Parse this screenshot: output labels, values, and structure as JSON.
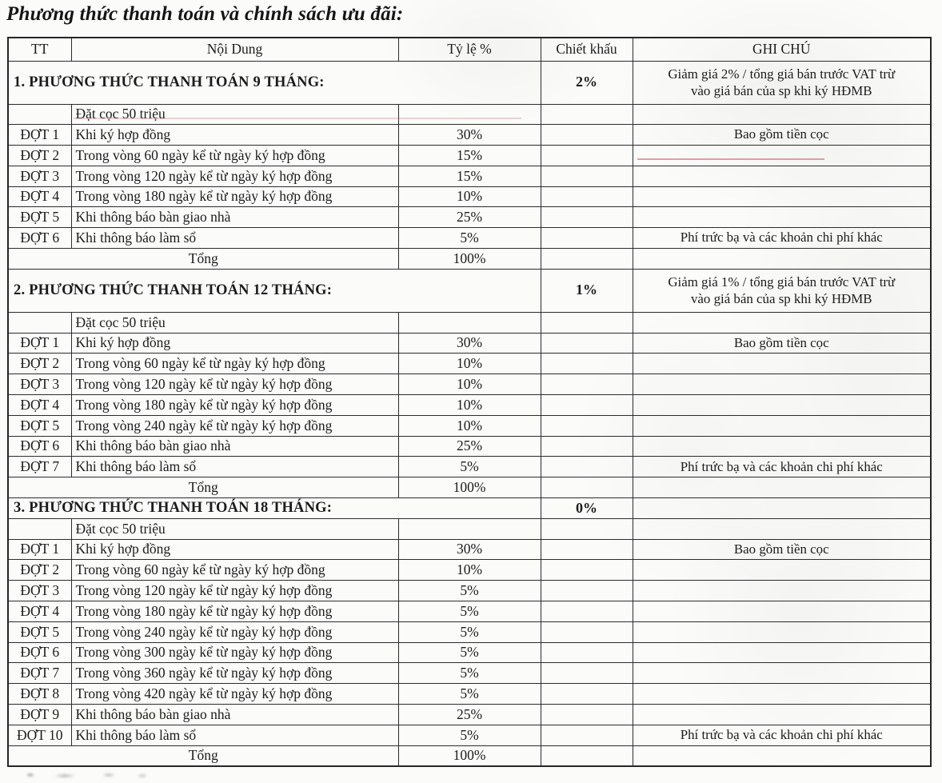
{
  "title": "Phương thức thanh toán và chính sách ưu đãi:",
  "colors": {
    "paper": "#fbfbf9",
    "ink": "#1c1c1c",
    "border": "#2c2c2c",
    "artifact_red": "#c9565c"
  },
  "table": {
    "headers": [
      "TT",
      "Nội Dung",
      "Tỷ lệ %",
      "Chiết khấu",
      "GHI CHÚ"
    ],
    "sections": [
      {
        "heading": "1. PHƯƠNG THỨC THANH TOÁN 9 THÁNG:",
        "discount": "2%",
        "heading_note": "Giảm giá 2% / tổng giá bán trước VAT trừ vào giá bán của sp khi ký HĐMB",
        "tall_heading": true,
        "rows": [
          {
            "tt": "",
            "content": "Đặt cọc 50 triệu",
            "rate": "",
            "note": ""
          },
          {
            "tt": "ĐỢT 1",
            "content": "Khi ký hợp đồng",
            "rate": "30%",
            "note": "Bao gồm tiền cọc"
          },
          {
            "tt": "ĐỢT 2",
            "content": "Trong vòng 60 ngày kể từ ngày ký hợp đồng",
            "rate": "15%",
            "note": ""
          },
          {
            "tt": "ĐỢT 3",
            "content": "Trong vòng 120 ngày kể từ ngày ký hợp đồng",
            "rate": "15%",
            "note": ""
          },
          {
            "tt": "ĐỢT 4",
            "content": "Trong vòng 180 ngày kể từ ngày ký hợp đồng",
            "rate": "10%",
            "note": ""
          },
          {
            "tt": "ĐỢT 5",
            "content": "Khi thông báo bàn giao nhà",
            "rate": "25%",
            "note": ""
          },
          {
            "tt": "ĐỢT 6",
            "content": "Khi thông báo làm sổ",
            "rate": "5%",
            "note": "Phí trức bạ và các khoản chi phí khác"
          }
        ],
        "total_label": "Tổng",
        "total_rate": "100%"
      },
      {
        "heading": "2. PHƯƠNG THỨC THANH TOÁN 12 THÁNG:",
        "discount": "1%",
        "heading_note": "Giảm giá 1% / tổng giá bán trước VAT trừ vào giá bán của sp khi ký HĐMB",
        "tall_heading": true,
        "rows": [
          {
            "tt": "",
            "content": "Đặt cọc 50 triệu",
            "rate": "",
            "note": ""
          },
          {
            "tt": "ĐỢT 1",
            "content": "Khi ký hợp đồng",
            "rate": "30%",
            "note": "Bao gồm tiền cọc"
          },
          {
            "tt": "ĐỢT 2",
            "content": "Trong vòng 60 ngày kể từ ngày ký hợp đồng",
            "rate": "10%",
            "note": ""
          },
          {
            "tt": "ĐỢT 3",
            "content": "Trong vòng 120 ngày kể từ ngày ký hợp đồng",
            "rate": "10%",
            "note": ""
          },
          {
            "tt": "ĐỢT 4",
            "content": "Trong vòng 180 ngày kể từ ngày ký hợp đồng",
            "rate": "10%",
            "note": ""
          },
          {
            "tt": "ĐỢT 5",
            "content": "Trong vòng 240 ngày kể từ ngày ký hợp đồng",
            "rate": "10%",
            "note": ""
          },
          {
            "tt": "ĐỢT 6",
            "content": "Khi thông báo bàn giao nhà",
            "rate": "25%",
            "note": ""
          },
          {
            "tt": "ĐỢT 7",
            "content": "Khi thông báo làm sổ",
            "rate": "5%",
            "note": "Phí trức bạ và các khoản chi phí khác"
          }
        ],
        "total_label": "Tổng",
        "total_rate": "100%"
      },
      {
        "heading": "3. PHƯƠNG THỨC THANH TOÁN 18 THÁNG:",
        "discount": "0%",
        "heading_note": "",
        "tall_heading": false,
        "rows": [
          {
            "tt": "",
            "content": "Đặt cọc 50 triệu",
            "rate": "",
            "note": ""
          },
          {
            "tt": "ĐỢT 1",
            "content": "Khi ký hợp đồng",
            "rate": "30%",
            "note": "Bao gồm tiền cọc"
          },
          {
            "tt": "ĐỢT 2",
            "content": "Trong vòng 60 ngày kể từ ngày ký hợp đồng",
            "rate": "10%",
            "note": ""
          },
          {
            "tt": "ĐỢT 3",
            "content": "Trong vòng 120 ngày kể từ ngày ký hợp đồng",
            "rate": "5%",
            "note": ""
          },
          {
            "tt": "ĐỢT 4",
            "content": "Trong vòng 180 ngày kể từ ngày ký hợp đồng",
            "rate": "5%",
            "note": ""
          },
          {
            "tt": "ĐỢT 5",
            "content": "Trong vòng 240 ngày kể từ ngày ký hợp đồng",
            "rate": "5%",
            "note": ""
          },
          {
            "tt": "ĐỢT 6",
            "content": "Trong vòng 300 ngày kể từ ngày ký hợp đồng",
            "rate": "5%",
            "note": ""
          },
          {
            "tt": "ĐỢT 7",
            "content": "Trong vòng 360 ngày kể từ ngày ký hợp đồng",
            "rate": "5%",
            "note": ""
          },
          {
            "tt": "ĐỢT 8",
            "content": "Trong vòng 420 ngày kể từ ngày ký hợp đồng",
            "rate": "5%",
            "note": ""
          },
          {
            "tt": "ĐỢT 9",
            "content": "Khi thông báo bàn giao nhà",
            "rate": "25%",
            "note": ""
          },
          {
            "tt": "ĐỢT 10",
            "content": "Khi thông báo làm sổ",
            "rate": "5%",
            "note": "Phí trức bạ và các khoản chi phí khác"
          }
        ],
        "total_label": "Tổng",
        "total_rate": "100%"
      }
    ]
  }
}
